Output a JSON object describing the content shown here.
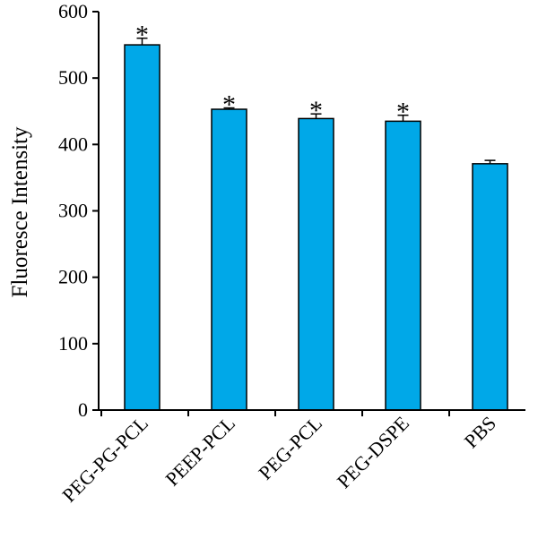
{
  "chart_data": {
    "type": "bar",
    "title": "",
    "xlabel": "",
    "ylabel": "Fluoresce Intensity",
    "ylim": [
      0,
      600
    ],
    "yticks": [
      0,
      100,
      200,
      300,
      400,
      500,
      600
    ],
    "categories": [
      "PEG-PG-PCL",
      "PEEP-PCL",
      "PEG-PCL",
      "PEG-DSPE",
      "PBS"
    ],
    "values": [
      550,
      453,
      439,
      435,
      371
    ],
    "errors": [
      10,
      2,
      7,
      9,
      5
    ],
    "significance": [
      "*",
      "*",
      "*",
      "*",
      ""
    ],
    "bar_color": "#00A8E8",
    "grid": false,
    "legend": "none"
  }
}
